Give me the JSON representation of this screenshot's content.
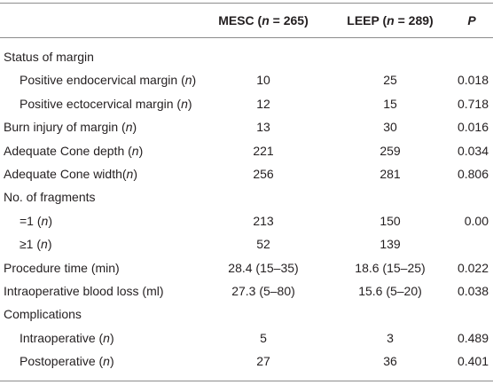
{
  "table": {
    "columns": [
      [
        {
          "t": "MESC ("
        },
        {
          "t": "n",
          "i": true
        },
        {
          "t": " = 265)"
        }
      ],
      [
        {
          "t": "LEEP ("
        },
        {
          "t": "n",
          "i": true
        },
        {
          "t": " = 289)"
        }
      ],
      [
        {
          "t": "P",
          "i": true
        }
      ]
    ],
    "rows": [
      {
        "label": [
          {
            "t": "Status of margin"
          }
        ]
      },
      {
        "label": [
          {
            "t": "Positive endocervical margin ("
          },
          {
            "t": "n",
            "i": true
          },
          {
            "t": ")"
          }
        ],
        "indent": true,
        "cells": [
          "10",
          "25",
          "0.018"
        ]
      },
      {
        "label": [
          {
            "t": "Positive ectocervical margin ("
          },
          {
            "t": "n",
            "i": true
          },
          {
            "t": ")"
          }
        ],
        "indent": true,
        "cells": [
          "12",
          "15",
          "0.718"
        ]
      },
      {
        "label": [
          {
            "t": "Burn injury of margin ("
          },
          {
            "t": "n",
            "i": true
          },
          {
            "t": ")"
          }
        ],
        "cells": [
          "13",
          "30",
          "0.016"
        ]
      },
      {
        "label": [
          {
            "t": "Adequate Cone depth ("
          },
          {
            "t": "n",
            "i": true
          },
          {
            "t": ")"
          }
        ],
        "cells": [
          "221",
          "259",
          "0.034"
        ]
      },
      {
        "label": [
          {
            "t": "Adequate Cone width("
          },
          {
            "t": "n",
            "i": true
          },
          {
            "t": ")"
          }
        ],
        "cells": [
          "256",
          "281",
          "0.806"
        ]
      },
      {
        "label": [
          {
            "t": "No. of fragments"
          }
        ]
      },
      {
        "label": [
          {
            "t": "=1 ("
          },
          {
            "t": "n",
            "i": true
          },
          {
            "t": ")"
          }
        ],
        "indent": true,
        "cells": [
          "213",
          "150",
          "0.00"
        ]
      },
      {
        "label": [
          {
            "t": "≥1 ("
          },
          {
            "t": "n",
            "i": true
          },
          {
            "t": ")"
          }
        ],
        "indent": true,
        "cells": [
          "52",
          "139"
        ]
      },
      {
        "label": [
          {
            "t": "Procedure time (min)"
          }
        ],
        "cells": [
          "28.4 (15–35)",
          "18.6 (15–25)",
          "0.022"
        ]
      },
      {
        "label": [
          {
            "t": "Intraoperative blood loss (ml)"
          }
        ],
        "cells": [
          "27.3 (5–80)",
          "15.6 (5–20)",
          "0.038"
        ]
      },
      {
        "label": [
          {
            "t": "Complications"
          }
        ]
      },
      {
        "label": [
          {
            "t": "Intraoperative ("
          },
          {
            "t": "n",
            "i": true
          },
          {
            "t": ")"
          }
        ],
        "indent": true,
        "cells": [
          "5",
          "3",
          "0.489"
        ]
      },
      {
        "label": [
          {
            "t": "Postoperative ("
          },
          {
            "t": "n",
            "i": true
          },
          {
            "t": ")"
          }
        ],
        "indent": true,
        "cells": [
          "27",
          "36",
          "0.401"
        ]
      }
    ]
  }
}
